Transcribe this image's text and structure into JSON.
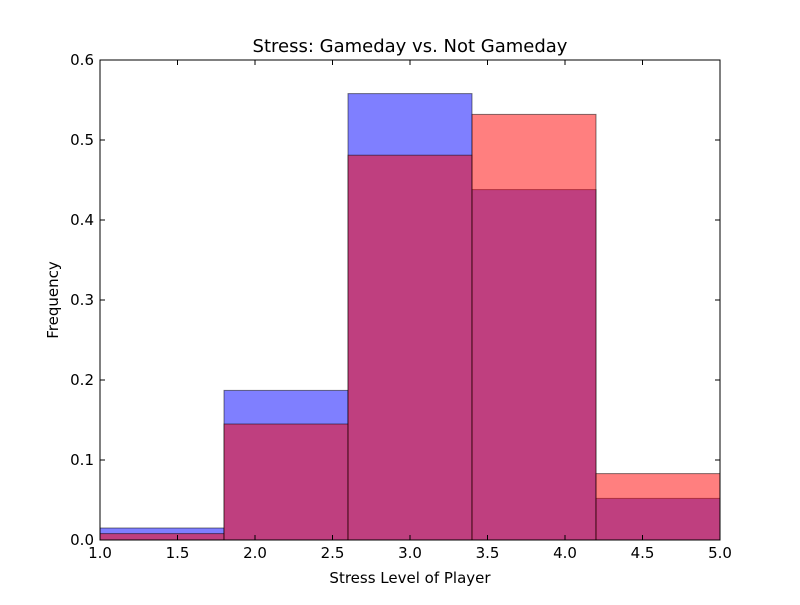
{
  "chart_data": {
    "type": "bar",
    "title": "Stress: Gameday vs. Not Gameday",
    "xlabel": "Stress Level of Player",
    "ylabel": "Frequency",
    "xlim": [
      1.0,
      5.0
    ],
    "ylim": [
      0.0,
      0.6
    ],
    "xticks": [
      "1.0",
      "1.5",
      "2.0",
      "2.5",
      "3.0",
      "3.5",
      "4.0",
      "4.5",
      "5.0"
    ],
    "yticks": [
      "0.0",
      "0.1",
      "0.2",
      "0.3",
      "0.4",
      "0.5",
      "0.6"
    ],
    "bin_edges": [
      1.0,
      1.8,
      2.6,
      3.4,
      4.2,
      5.0
    ],
    "grid": false,
    "legend": "none",
    "series": [
      {
        "values": [
          0.015,
          0.187,
          0.558,
          0.438,
          0.052
        ],
        "color": "#0000ff",
        "alpha": 0.5
      },
      {
        "values": [
          0.008,
          0.145,
          0.481,
          0.532,
          0.083
        ],
        "color": "#ff0000",
        "alpha": 0.5
      }
    ]
  }
}
